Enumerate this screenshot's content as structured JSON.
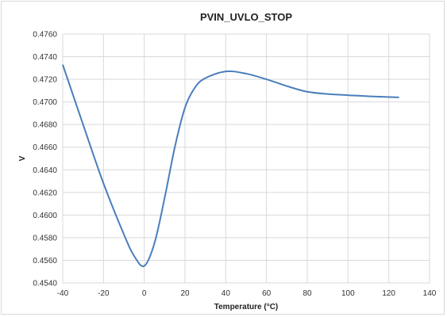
{
  "chart_data": {
    "type": "line",
    "title": "PVIN_UVLO_STOP",
    "xlabel": "Temperature (°C)",
    "ylabel": "V",
    "xlim": [
      -40,
      140
    ],
    "ylim": [
      0.454,
      0.476
    ],
    "x_ticks": [
      "-40",
      "-20",
      "0",
      "20",
      "40",
      "60",
      "80",
      "100",
      "120",
      "140"
    ],
    "y_ticks": [
      "0.4540",
      "0.4560",
      "0.4580",
      "0.4600",
      "0.4620",
      "0.4640",
      "0.4660",
      "0.4680",
      "0.4700",
      "0.4720",
      "0.4740",
      "0.4760"
    ],
    "grid": true,
    "series": [
      {
        "color": "#4a7ebb",
        "x": [
          -40,
          -30,
          -20,
          -10,
          -5,
          0,
          5,
          10,
          15,
          20,
          25,
          30,
          40,
          50,
          60,
          70,
          80,
          90,
          100,
          110,
          125
        ],
        "y": [
          0.4733,
          0.468,
          0.4628,
          0.4583,
          0.4564,
          0.4555,
          0.4575,
          0.4615,
          0.466,
          0.4695,
          0.4713,
          0.4721,
          0.4727,
          0.4725,
          0.472,
          0.4714,
          0.4709,
          0.4707,
          0.4706,
          0.4705,
          0.4704
        ]
      }
    ]
  }
}
